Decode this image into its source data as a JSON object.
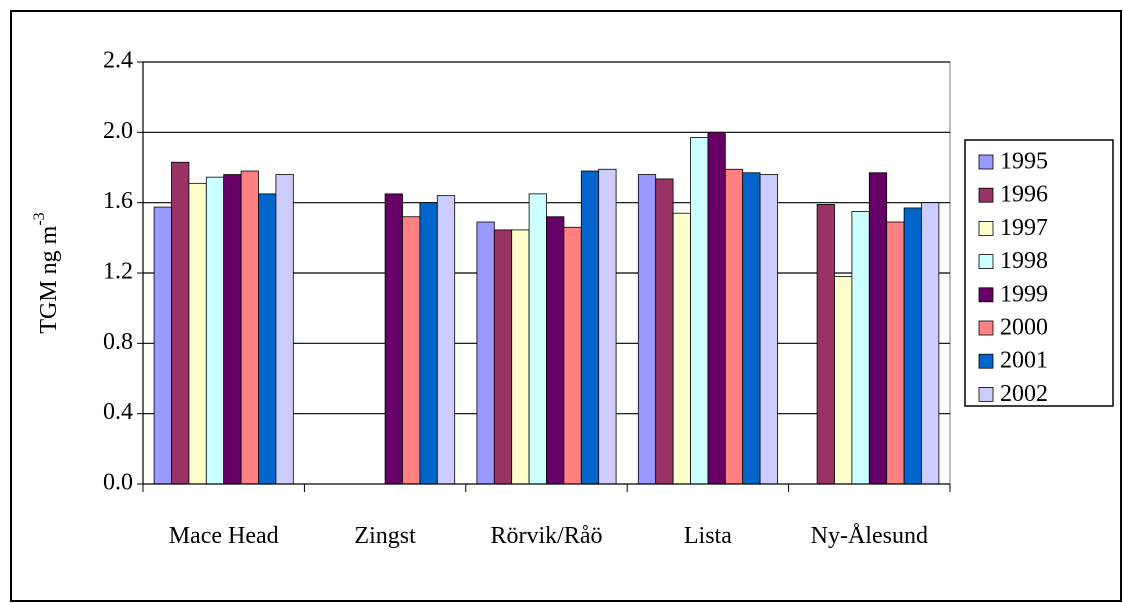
{
  "chart_data": {
    "type": "bar",
    "y_label": "TGM  ng m",
    "y_label_exponent": "-3",
    "categories": [
      "Mace Head",
      "Zingst",
      "Rörvik/Råö",
      "Lista",
      "Ny-Ålesund"
    ],
    "series": [
      {
        "name": "1995",
        "color": "#9999ff",
        "values": [
          1.575,
          null,
          1.49,
          1.76,
          null
        ]
      },
      {
        "name": "1996",
        "color": "#993366",
        "values": [
          1.83,
          null,
          1.445,
          1.735,
          1.59
        ]
      },
      {
        "name": "1997",
        "color": "#ffffcc",
        "values": [
          1.71,
          null,
          1.445,
          1.54,
          1.18
        ]
      },
      {
        "name": "1998",
        "color": "#ccffff",
        "values": [
          1.745,
          null,
          1.65,
          1.97,
          1.55
        ]
      },
      {
        "name": "1999",
        "color": "#660066",
        "values": [
          1.76,
          1.65,
          1.52,
          2.0,
          1.77
        ]
      },
      {
        "name": "2000",
        "color": "#ff8080",
        "values": [
          1.78,
          1.52,
          1.46,
          1.79,
          1.49
        ]
      },
      {
        "name": "2001",
        "color": "#0066cc",
        "values": [
          1.65,
          1.6,
          1.78,
          1.77,
          1.57
        ]
      },
      {
        "name": "2002",
        "color": "#ccccff",
        "values": [
          1.76,
          1.64,
          1.79,
          1.76,
          1.6
        ]
      }
    ],
    "ylim": [
      0,
      2.4
    ],
    "yticks": [
      {
        "value": 0,
        "label": "0.0"
      },
      0.4,
      0.8,
      1.2,
      1.6,
      {
        "value": 2,
        "label": "2.0"
      },
      2.4
    ],
    "grid": true,
    "legend": "right"
  }
}
